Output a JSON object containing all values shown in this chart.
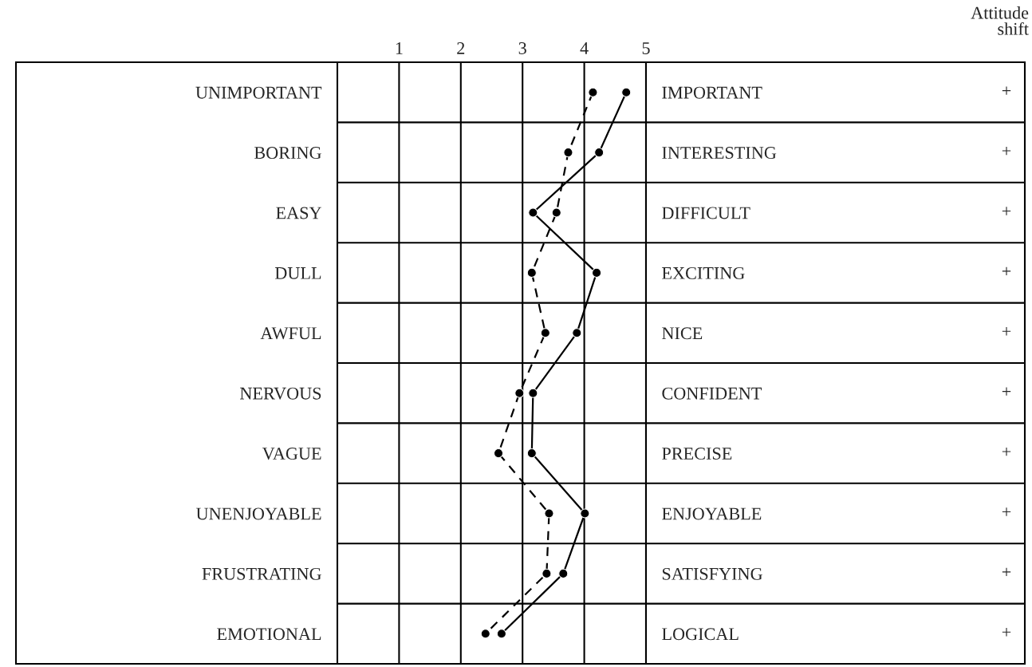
{
  "chart_data": {
    "type": "line",
    "orientation": "horizontal",
    "categories": [
      "UNIMPORTANT",
      "BORING",
      "EASY",
      "DULL",
      "AWFUL",
      "NERVOUS",
      "VAGUE",
      "UNENJOYABLE",
      "FRUSTRATING",
      "EMOTIONAL"
    ],
    "y2_categories": [
      "IMPORTANT",
      "INTERESTING",
      "DIFFICULT",
      "EXCITING",
      "NICE",
      "CONFIDENT",
      "PRECISE",
      "ENJOYABLE",
      "SATISFYING",
      "LOGICAL"
    ],
    "series": [
      {
        "color": "#000000",
        "line_style": "solid",
        "values": [
          4.68,
          4.24,
          3.17,
          4.2,
          3.88,
          3.17,
          3.15,
          4.01,
          3.66,
          2.66
        ]
      },
      {
        "color": "#000000",
        "line_style": "dashed",
        "values": [
          4.14,
          3.74,
          3.55,
          3.15,
          3.37,
          2.95,
          2.61,
          3.43,
          3.39,
          2.4
        ]
      }
    ],
    "xlim": [
      0,
      5
    ],
    "xticks": [
      1,
      2,
      3,
      4,
      5
    ],
    "grid": true,
    "marker": "circle",
    "annotations": [
      "Attitude\nshift",
      "+",
      "+",
      "+",
      "+",
      "+",
      "+",
      "+",
      "+",
      "+",
      "+"
    ]
  }
}
